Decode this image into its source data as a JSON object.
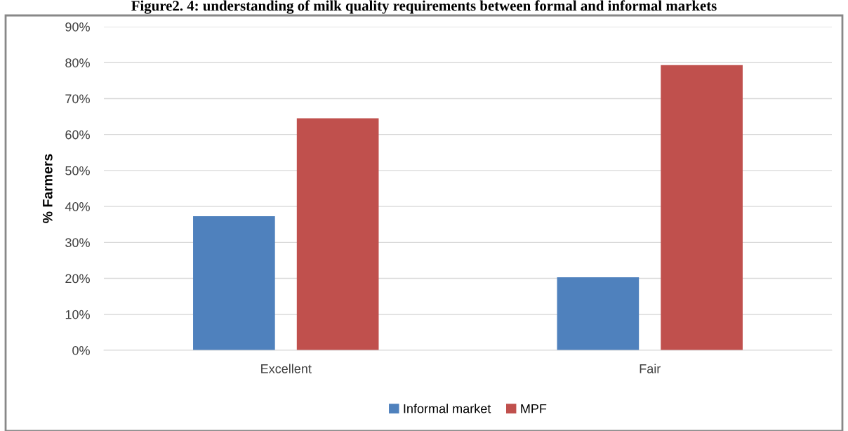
{
  "chart_data": {
    "type": "bar",
    "title": "Figure2. 4: understanding of milk quality requirements between formal and informal markets",
    "ylabel": "% Farmers",
    "categories": [
      "Excellent",
      "Fair"
    ],
    "series": [
      {
        "name": "Informal market",
        "color": "#4f81bd",
        "values": [
          37.3,
          20.3
        ]
      },
      {
        "name": "MPF",
        "color": "#c0504d",
        "values": [
          64.5,
          79.3
        ]
      }
    ],
    "ylim": [
      0,
      90
    ],
    "yticks": [
      {
        "value": 0,
        "label": "0%"
      },
      {
        "value": 10,
        "label": "10%"
      },
      {
        "value": 20,
        "label": "20%"
      },
      {
        "value": 30,
        "label": "30%"
      },
      {
        "value": 40,
        "label": "40%"
      },
      {
        "value": 50,
        "label": "50%"
      },
      {
        "value": 60,
        "label": "60%"
      },
      {
        "value": 70,
        "label": "70%"
      },
      {
        "value": 80,
        "label": "80%"
      },
      {
        "value": 90,
        "label": "90%"
      }
    ],
    "grid": "y",
    "legend": "bottom"
  }
}
